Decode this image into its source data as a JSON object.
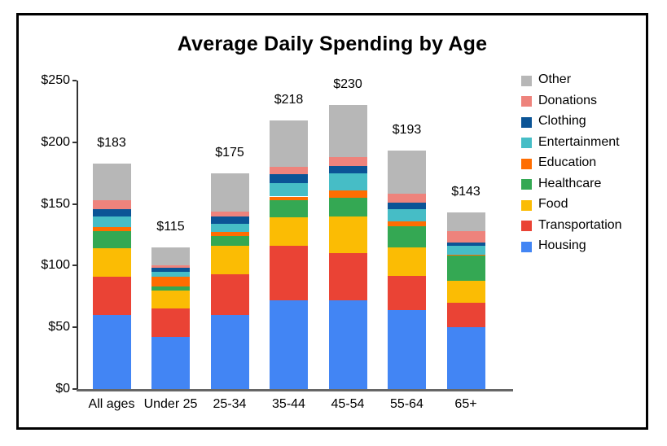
{
  "chart_data": {
    "type": "bar",
    "stacked": true,
    "title": "Average Daily Spending by Age",
    "categories": [
      "All ages",
      "Under 25",
      "25-34",
      "35-44",
      "45-54",
      "55-64",
      "65+"
    ],
    "totals": [
      183,
      115,
      175,
      218,
      230,
      193,
      143
    ],
    "total_labels": [
      "$183",
      "$115",
      "$175",
      "$218",
      "$230",
      "$193",
      "$143"
    ],
    "series": [
      {
        "name": "Housing",
        "color": "#4285f4",
        "values": [
          60,
          42,
          60,
          72,
          72,
          64,
          50
        ]
      },
      {
        "name": "Transportation",
        "color": "#ea4335",
        "values": [
          31,
          23,
          33,
          44,
          38,
          28,
          20
        ]
      },
      {
        "name": "Food",
        "color": "#fbbc04",
        "values": [
          23,
          15,
          23,
          23,
          30,
          23,
          18
        ]
      },
      {
        "name": "Healthcare",
        "color": "#34a853",
        "values": [
          14,
          3,
          8,
          14,
          15,
          17,
          20
        ]
      },
      {
        "name": "Education",
        "color": "#ff6d01",
        "values": [
          3,
          8,
          3,
          3,
          6,
          4,
          1
        ]
      },
      {
        "name": "Entertainment",
        "color": "#46bdc6",
        "values": [
          9,
          4,
          7,
          11,
          14,
          10,
          7
        ]
      },
      {
        "name": "Clothing",
        "color": "#0b5496",
        "values": [
          6,
          3,
          6,
          7,
          6,
          5,
          3
        ]
      },
      {
        "name": "Donations",
        "color": "#ee837c",
        "values": [
          7,
          2,
          4,
          6,
          7,
          7,
          9
        ]
      },
      {
        "name": "Other",
        "color": "#b7b7b7",
        "values": [
          30,
          15,
          31,
          38,
          42,
          35,
          15
        ]
      }
    ],
    "legend_order_top_to_bottom": [
      "Other",
      "Donations",
      "Clothing",
      "Entertainment",
      "Education",
      "Healthcare",
      "Food",
      "Transportation",
      "Housing"
    ],
    "legend_position": "right",
    "y_tick_labels": [
      "$0",
      "$50",
      "$100",
      "$150",
      "$200",
      "$250"
    ],
    "y_tick_values": [
      0,
      50,
      100,
      150,
      200,
      250
    ],
    "ylim": [
      0,
      250
    ],
    "grid": false,
    "axis_color": "#333333",
    "border_color": "#000000"
  }
}
